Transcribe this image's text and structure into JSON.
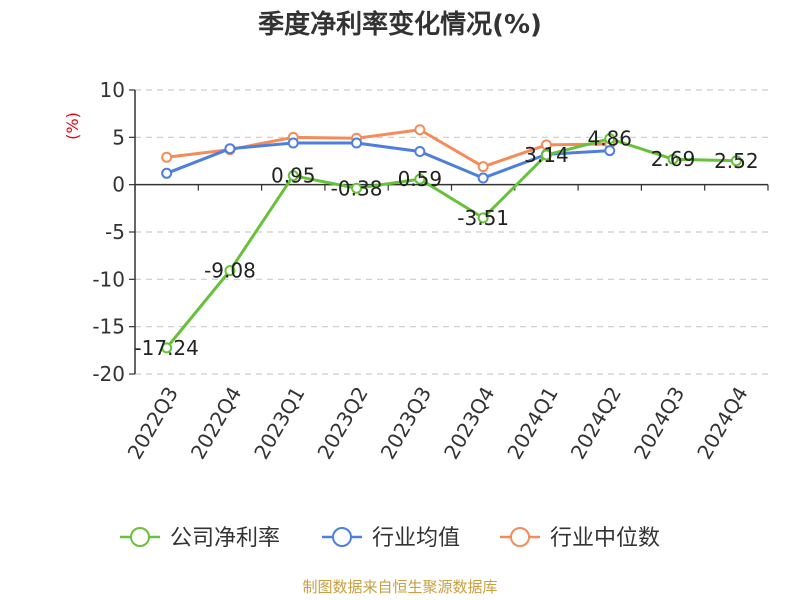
{
  "chart_data": {
    "type": "line",
    "title": "季度净利率变化情况(%)",
    "ylabel": "(%)",
    "categories": [
      "2022Q3",
      "2022Q4",
      "2023Q1",
      "2023Q2",
      "2023Q3",
      "2023Q4",
      "2024Q1",
      "2024Q2",
      "2024Q3",
      "2024Q4"
    ],
    "ylim": [
      -20,
      10
    ],
    "yticks": [
      10,
      5,
      0,
      -5,
      -10,
      -15,
      -20
    ],
    "grid": true,
    "legend_position": "bottom",
    "series": [
      {
        "name": "公司净利率",
        "color": "#67c23a",
        "values": [
          -17.24,
          -9.08,
          0.95,
          -0.38,
          0.59,
          -3.51,
          3.14,
          4.86,
          2.69,
          2.52
        ],
        "labels": [
          "-17.24",
          "-9.08",
          "0.95",
          "-0.38",
          "0.59",
          "-3.51",
          "3.14",
          "4.86",
          "2.69",
          "2.52"
        ]
      },
      {
        "name": "行业均值",
        "color": "#4f7fdc",
        "values": [
          1.2,
          3.8,
          4.4,
          4.4,
          3.5,
          0.7,
          3.2,
          3.6,
          null,
          null
        ]
      },
      {
        "name": "行业中位数",
        "color": "#f48c5a",
        "values": [
          2.9,
          3.7,
          5.0,
          4.9,
          5.8,
          1.9,
          4.2,
          4.3,
          null,
          null
        ]
      }
    ]
  },
  "source": "制图数据来自恒生聚源数据库"
}
